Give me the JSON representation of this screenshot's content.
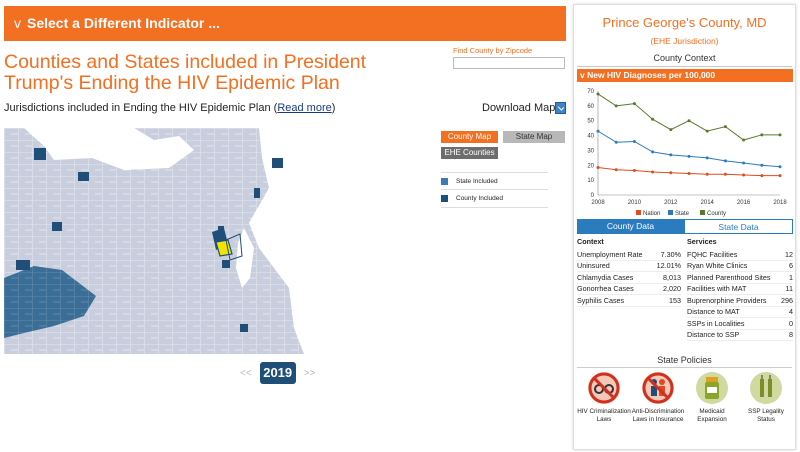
{
  "indicator": {
    "label": "Select a Different Indicator ...",
    "chevron_icon": "chevron-down-icon"
  },
  "page": {
    "title": "Counties and States included in President Trump's Ending the HIV Epidemic Plan",
    "zip_label": "Find County by Zipcode",
    "zip_value": "",
    "juris_text": "Jurisdictions included in Ending the HIV Epidemic Plan (",
    "read_more": "Read more",
    "juris_close": ")",
    "download_label": "Download Map:"
  },
  "map_buttons": {
    "county_map": "County Map",
    "state_map": "State Map",
    "ehe_counties": "EHE Counties"
  },
  "legend": [
    {
      "label": "State Included",
      "color": "#3a7bb8"
    },
    {
      "label": "County Included",
      "color": "#1f4e79"
    }
  ],
  "year_nav": {
    "prev": "<<",
    "year": "2019",
    "next": ">>"
  },
  "colors": {
    "accent": "#f36f21",
    "navy": "#1f4e79",
    "blue": "#2b7bbf",
    "map_bg": "#c8cedd"
  },
  "panel": {
    "county_name": "Prince George's County, MD",
    "ehe_sub": "(EHE Jurisdiction)",
    "context_head": "County Context",
    "hiv_bar": "New HIV Diagnoses per 100,000",
    "tabs": {
      "county": "County Data",
      "state": "State Data"
    },
    "context_title": "Context",
    "services_title": "Services",
    "context_rows": [
      {
        "label": "Unemployment Rate",
        "value": "7.30%"
      },
      {
        "label": "Uninsured",
        "value": "12.01%"
      },
      {
        "label": "Chlamydia Cases",
        "value": "8,013"
      },
      {
        "label": "Gonorrhea Cases",
        "value": "2,020"
      },
      {
        "label": "Syphilis Cases",
        "value": "153"
      }
    ],
    "service_rows": [
      {
        "label": "FQHC Facilities",
        "value": "12"
      },
      {
        "label": "Ryan White Clinics",
        "value": "6"
      },
      {
        "label": "Planned Parenthood Sites",
        "value": "1"
      },
      {
        "label": "Facilities with MAT",
        "value": "11"
      },
      {
        "label": "Buprenorphine Providers",
        "value": "296"
      },
      {
        "label": "Distance to MAT",
        "value": "4"
      },
      {
        "label": "SSPs in Localities",
        "value": "0"
      },
      {
        "label": "Distance to SSP",
        "value": "8"
      }
    ],
    "policies_head": "State Policies",
    "policies": [
      {
        "label": "HIV Criminalization Laws",
        "icon": "no-handcuffs-icon"
      },
      {
        "label": "Anti-Discrimination Laws in Insurance",
        "icon": "no-discrimination-icon"
      },
      {
        "label": "Medicaid Expansion",
        "icon": "medicine-bottle-icon"
      },
      {
        "label": "SSP Legality Status",
        "icon": "syringe-icon"
      }
    ]
  },
  "chart_data": {
    "type": "line",
    "x": [
      2008,
      2009,
      2010,
      2011,
      2012,
      2013,
      2014,
      2015,
      2016,
      2017,
      2018
    ],
    "ylim": [
      0,
      70
    ],
    "yticks": [
      0,
      10,
      20,
      30,
      40,
      50,
      60,
      70
    ],
    "xticks": [
      2008,
      2010,
      2012,
      2014,
      2016,
      2018
    ],
    "series": [
      {
        "name": "Nation",
        "color": "#e04a1f",
        "values": [
          18.5,
          17,
          16.5,
          15.5,
          15,
          14.5,
          14,
          14,
          13.5,
          13,
          13
        ]
      },
      {
        "name": "State",
        "color": "#2b7bbf",
        "values": [
          43,
          35.5,
          36,
          29,
          27,
          26,
          25,
          23,
          21.5,
          20,
          19
        ]
      },
      {
        "name": "County",
        "color": "#5a7a2a",
        "values": [
          68,
          60,
          61.5,
          51,
          44,
          50,
          43,
          46,
          37,
          40.5,
          40.5
        ]
      }
    ],
    "legend_position": "bottom"
  }
}
